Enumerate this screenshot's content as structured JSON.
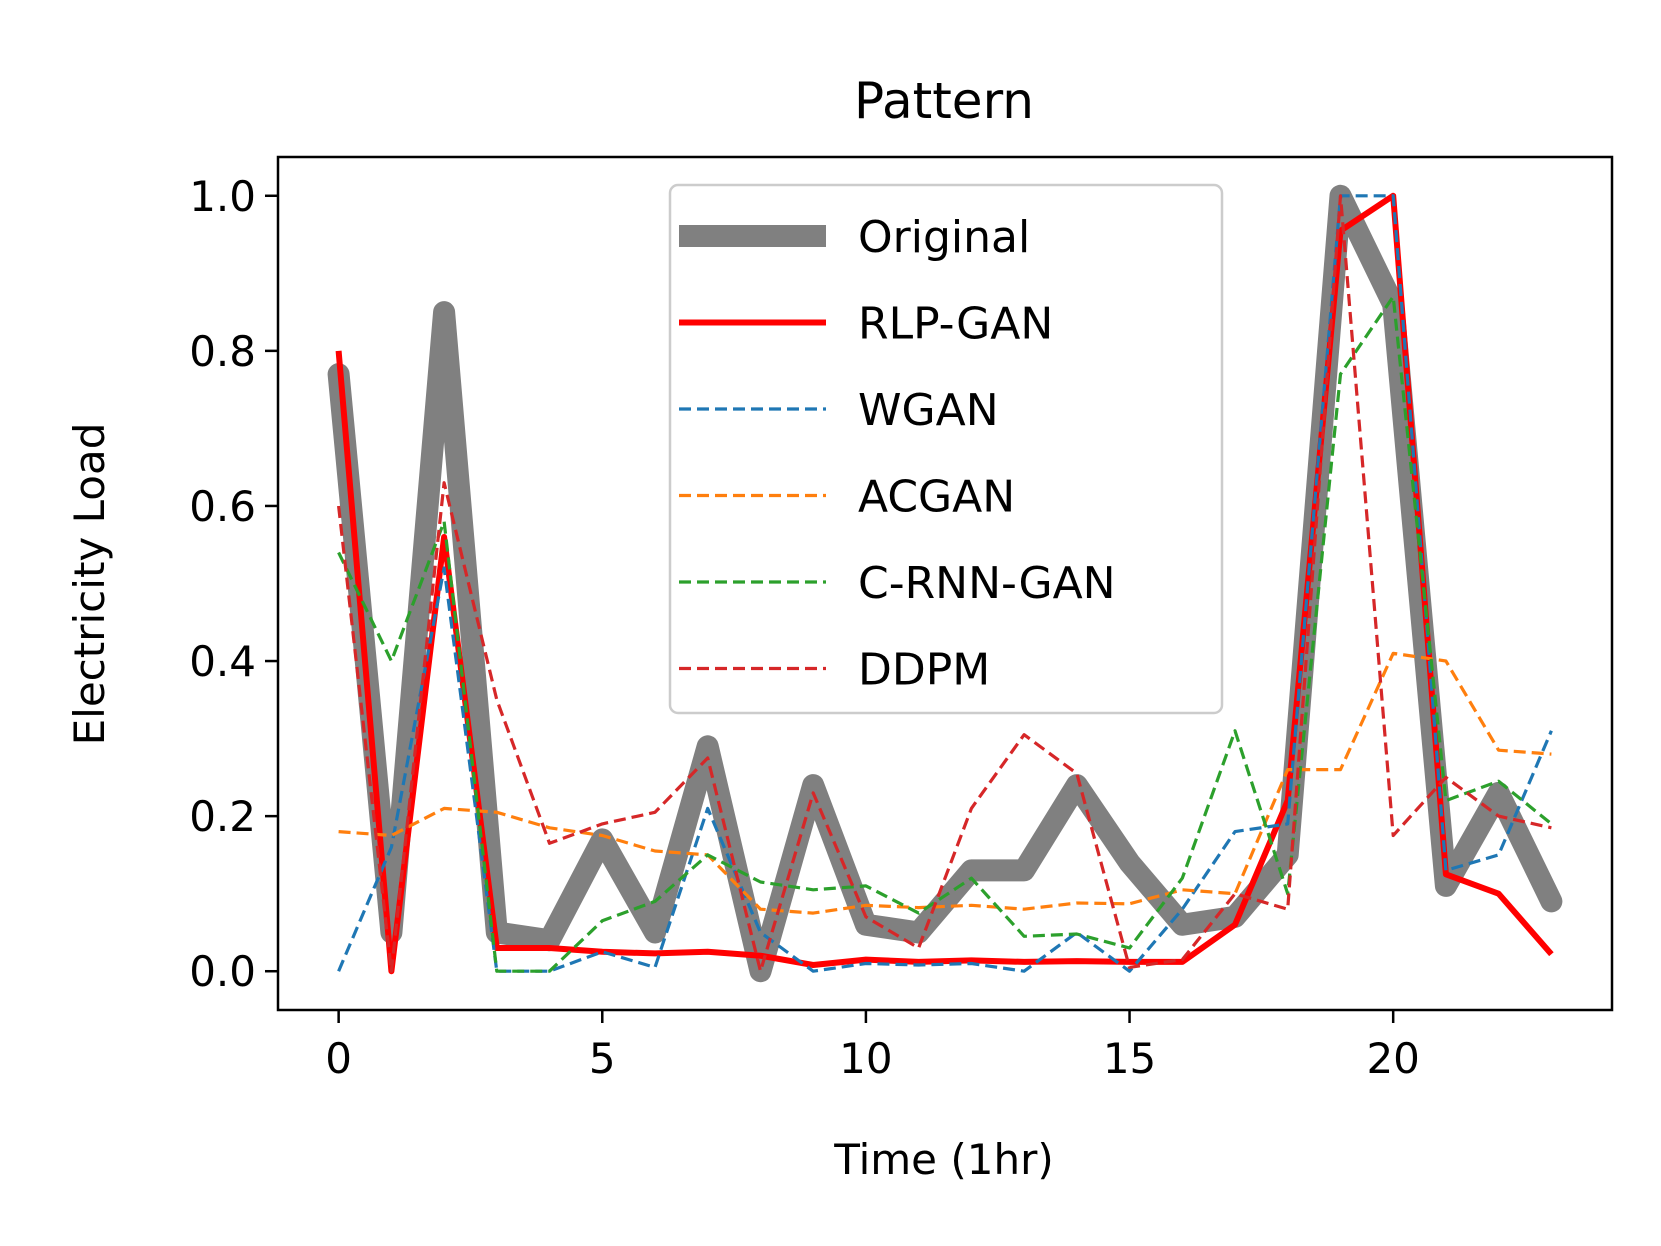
{
  "chart_data": {
    "type": "line",
    "title": "Pattern",
    "xlabel": "Time (1hr)",
    "ylabel": "Electricity Load",
    "xlim": [
      -1.15,
      24.15
    ],
    "ylim": [
      -0.05,
      1.05
    ],
    "xticks": [
      0,
      5,
      10,
      15,
      20
    ],
    "xtick_labels": [
      "0",
      "5",
      "10",
      "15",
      "20"
    ],
    "yticks": [
      0.0,
      0.2,
      0.4,
      0.6,
      0.8,
      1.0
    ],
    "ytick_labels": [
      "0.0",
      "0.2",
      "0.4",
      "0.6",
      "0.8",
      "1.0"
    ],
    "grid": false,
    "legend_position": "upper-center",
    "x": [
      0,
      1,
      2,
      3,
      4,
      5,
      6,
      7,
      8,
      9,
      10,
      11,
      12,
      13,
      14,
      15,
      16,
      17,
      18,
      19,
      20,
      21,
      22,
      23
    ],
    "series": [
      {
        "name": "Original",
        "color": "#808080",
        "style": "solid-thick",
        "values": [
          0.77,
          0.05,
          0.85,
          0.05,
          0.04,
          0.17,
          0.05,
          0.29,
          0.0,
          0.24,
          0.06,
          0.05,
          0.13,
          0.13,
          0.24,
          0.14,
          0.06,
          0.07,
          0.15,
          1.0,
          0.86,
          0.11,
          0.23,
          0.09
        ]
      },
      {
        "name": "RLP-GAN",
        "color": "#ff0000",
        "style": "solid",
        "values": [
          0.8,
          0.0,
          0.56,
          0.03,
          0.03,
          0.025,
          0.023,
          0.025,
          0.02,
          0.008,
          0.015,
          0.012,
          0.014,
          0.012,
          0.013,
          0.012,
          0.012,
          0.06,
          0.22,
          0.955,
          1.0,
          0.125,
          0.1,
          0.022
        ]
      },
      {
        "name": "WGAN",
        "color": "#1f77b4",
        "style": "dashed",
        "values": [
          0.0,
          0.16,
          0.52,
          0.0,
          0.0,
          0.025,
          0.005,
          0.21,
          0.05,
          0.0,
          0.01,
          0.008,
          0.01,
          0.0,
          0.05,
          0.0,
          0.08,
          0.18,
          0.19,
          1.0,
          1.0,
          0.13,
          0.15,
          0.31
        ]
      },
      {
        "name": "ACGAN",
        "color": "#ff7f0e",
        "style": "dashed",
        "values": [
          0.18,
          0.175,
          0.21,
          0.205,
          0.185,
          0.175,
          0.155,
          0.15,
          0.08,
          0.075,
          0.085,
          0.082,
          0.085,
          0.08,
          0.088,
          0.087,
          0.105,
          0.1,
          0.26,
          0.26,
          0.41,
          0.4,
          0.285,
          0.28
        ]
      },
      {
        "name": "C-RNN-GAN",
        "color": "#2ca02c",
        "style": "dashed",
        "values": [
          0.54,
          0.4,
          0.58,
          0.0,
          0.0,
          0.065,
          0.09,
          0.15,
          0.115,
          0.105,
          0.11,
          0.075,
          0.12,
          0.045,
          0.048,
          0.03,
          0.12,
          0.31,
          0.1,
          0.77,
          0.87,
          0.22,
          0.245,
          0.19
        ]
      },
      {
        "name": "DDPM",
        "color": "#d62728",
        "style": "dashed",
        "values": [
          0.6,
          0.0,
          0.63,
          0.35,
          0.165,
          0.19,
          0.205,
          0.275,
          0.0,
          0.23,
          0.07,
          0.03,
          0.21,
          0.305,
          0.255,
          0.005,
          0.015,
          0.1,
          0.08,
          1.0,
          0.175,
          0.25,
          0.2,
          0.185
        ]
      }
    ]
  }
}
